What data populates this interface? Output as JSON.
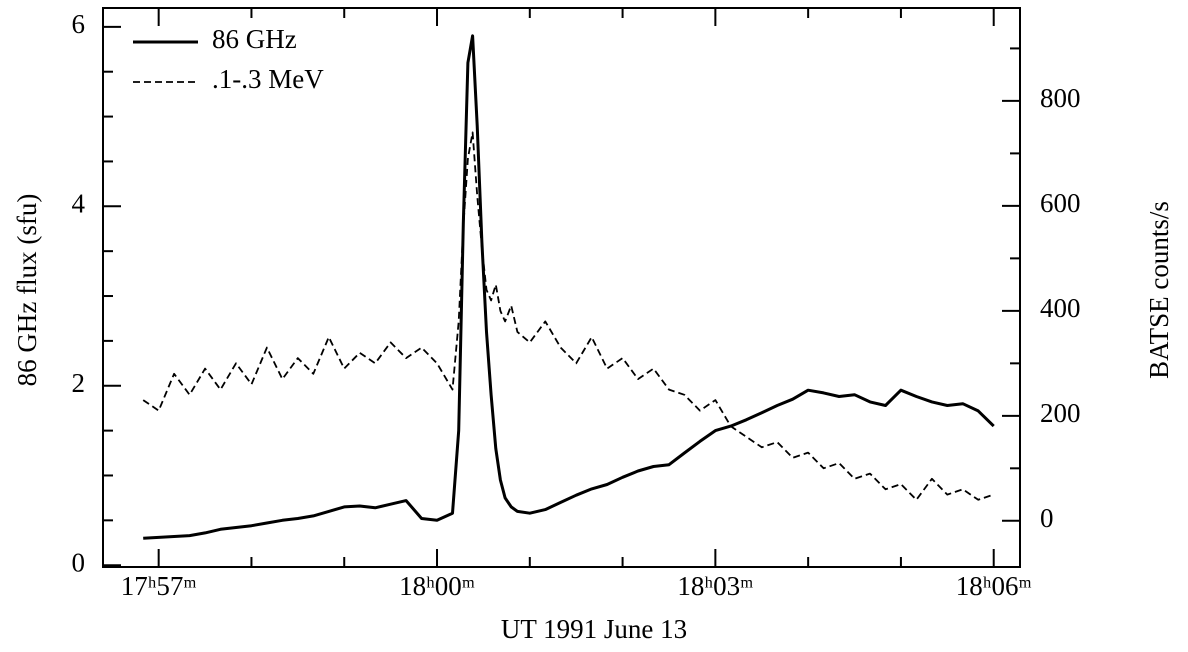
{
  "chart_data": {
    "type": "line",
    "xlabel": "UT 1991 June 13",
    "ylabel": "86 GHz flux (sfu)",
    "y2label": "BATSE counts/s",
    "legend": "upper left",
    "x": [
      "17:56:50",
      "17:57:00",
      "17:57:10",
      "17:57:20",
      "17:57:30",
      "17:57:40",
      "17:57:50",
      "17:58:00",
      "17:58:10",
      "17:58:20",
      "17:58:30",
      "17:58:40",
      "17:58:50",
      "17:59:00",
      "17:59:10",
      "17:59:20",
      "17:59:30",
      "17:59:40",
      "17:59:50",
      "18:00:00",
      "18:00:10",
      "18:00:14",
      "18:00:17",
      "18:00:20",
      "18:00:23",
      "18:00:26",
      "18:00:29",
      "18:00:32",
      "18:00:35",
      "18:00:38",
      "18:00:41",
      "18:00:44",
      "18:00:48",
      "18:00:52",
      "18:01:00",
      "18:01:10",
      "18:01:20",
      "18:01:30",
      "18:01:40",
      "18:01:50",
      "18:02:00",
      "18:02:10",
      "18:02:20",
      "18:02:30",
      "18:02:40",
      "18:02:50",
      "18:03:00",
      "18:03:10",
      "18:03:20",
      "18:03:30",
      "18:03:40",
      "18:03:50",
      "18:04:00",
      "18:04:10",
      "18:04:20",
      "18:04:30",
      "18:04:40",
      "18:04:50",
      "18:05:00",
      "18:05:10",
      "18:05:20",
      "18:05:30",
      "18:05:40",
      "18:05:50",
      "18:06:00"
    ],
    "series": [
      {
        "name": "86 GHz",
        "color": "#000000",
        "dash": "solid",
        "axis": "y",
        "values": [
          0.3,
          0.31,
          0.32,
          0.33,
          0.36,
          0.4,
          0.42,
          0.44,
          0.47,
          0.5,
          0.52,
          0.55,
          0.6,
          0.65,
          0.66,
          0.64,
          0.68,
          0.72,
          0.52,
          0.5,
          0.58,
          1.5,
          3.8,
          5.6,
          5.9,
          4.9,
          3.6,
          2.6,
          1.9,
          1.3,
          0.95,
          0.75,
          0.65,
          0.6,
          0.58,
          0.62,
          0.7,
          0.78,
          0.85,
          0.9,
          0.98,
          1.05,
          1.1,
          1.12,
          1.25,
          1.38,
          1.5,
          1.55,
          1.62,
          1.7,
          1.78,
          1.85,
          1.95,
          1.92,
          1.88,
          1.9,
          1.82,
          1.78,
          1.95,
          1.88,
          1.82,
          1.78,
          1.8,
          1.72,
          1.55
        ]
      },
      {
        "name": ".1-.3 MeV",
        "color": "#000000",
        "dash": "dashed",
        "axis": "y2",
        "values": [
          230,
          210,
          280,
          240,
          290,
          250,
          300,
          260,
          330,
          270,
          310,
          280,
          350,
          290,
          320,
          300,
          340,
          310,
          330,
          300,
          250,
          380,
          560,
          690,
          740,
          620,
          520,
          440,
          420,
          450,
          400,
          380,
          410,
          360,
          340,
          380,
          330,
          300,
          350,
          290,
          310,
          270,
          290,
          250,
          240,
          210,
          230,
          180,
          160,
          140,
          150,
          120,
          130,
          100,
          110,
          80,
          90,
          60,
          70,
          40,
          80,
          50,
          60,
          40,
          50
        ]
      }
    ],
    "xlim": [
      "17:56:24",
      "18:06:17"
    ],
    "xticks": [
      {
        "value": "17:57:00",
        "label": "17ʰ57ᵐ"
      },
      {
        "value": "18:00:00",
        "label": "18ʰ00ᵐ"
      },
      {
        "value": "18:03:00",
        "label": "18ʰ03ᵐ"
      },
      {
        "value": "18:06:00",
        "label": "18ʰ06ᵐ"
      }
    ],
    "xminor_ticks": [
      "17:58:00",
      "17:59:00",
      "18:01:00",
      "18:02:00",
      "18:04:00",
      "18:05:00"
    ],
    "ylim": [
      -0.02,
      6.21
    ],
    "yticks": [
      0,
      2,
      4,
      6
    ],
    "yminor_ticks": [
      0.5,
      1,
      1.5,
      2.5,
      3,
      3.5,
      4.5,
      5,
      5.5
    ],
    "y2lim": [
      -88,
      977
    ],
    "y2ticks": [
      0,
      200,
      400,
      600,
      800
    ],
    "y2minor_ticks": [
      100,
      300,
      500,
      700,
      900
    ]
  }
}
